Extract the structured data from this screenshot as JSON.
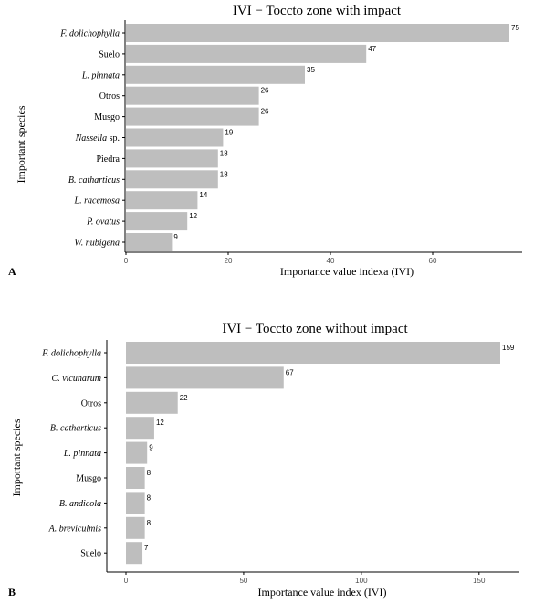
{
  "chart_data": [
    {
      "type": "bar",
      "orientation": "horizontal",
      "title": "IVI − Toccto zone with impact",
      "xlabel": "Importance value indexa (IVI)",
      "ylabel": "Important species",
      "panel_label": "A",
      "xlim": [
        0,
        75
      ],
      "xticks": [
        "0",
        "20",
        "40",
        "60"
      ],
      "grid": false,
      "categories": [
        {
          "label": "F. dolichophylla",
          "italic": true
        },
        {
          "label": "Suelo",
          "italic": false
        },
        {
          "label": "L. pinnata",
          "italic": true
        },
        {
          "label": "Otros",
          "italic": false
        },
        {
          "label": "Musgo",
          "italic": false
        },
        {
          "label": "Nassella",
          "suffix": " sp.",
          "italic": true
        },
        {
          "label": "Piedra",
          "italic": false
        },
        {
          "label": "B. catharticus",
          "italic": true
        },
        {
          "label": "L. racemosa",
          "italic": true
        },
        {
          "label": "P. ovatus",
          "italic": true
        },
        {
          "label": "W. nubigena",
          "italic": true
        }
      ],
      "values": [
        75,
        47,
        35,
        26,
        26,
        19,
        18,
        18,
        14,
        12,
        9
      ],
      "value_labels": [
        "75",
        "47",
        "35",
        "26",
        "26",
        "19",
        "18",
        "18",
        "14",
        "12",
        "9"
      ]
    },
    {
      "type": "bar",
      "orientation": "horizontal",
      "title": "IVI − Toccto zone without impact",
      "xlabel": "Importance value index (IVI)",
      "ylabel": "Important species",
      "panel_label": "B",
      "xlim": [
        0,
        159
      ],
      "xticks": [
        "0",
        "50",
        "100",
        "150"
      ],
      "grid": false,
      "categories": [
        {
          "label": "F. dolichophylla",
          "italic": true
        },
        {
          "label": "C. vicunarum",
          "italic": true
        },
        {
          "label": "Otros",
          "italic": false
        },
        {
          "label": "B. catharticus",
          "italic": true
        },
        {
          "label": "L. pinnata",
          "italic": true
        },
        {
          "label": "Musgo",
          "italic": false
        },
        {
          "label": "B. andicola",
          "italic": true
        },
        {
          "label": "A. breviculmis",
          "italic": true
        },
        {
          "label": "Suelo",
          "italic": false
        }
      ],
      "values": [
        159,
        67,
        22,
        12,
        9,
        8,
        8,
        8,
        7
      ],
      "value_labels": [
        "159",
        "67",
        "22",
        "12",
        "9",
        "8",
        "8",
        "8",
        "7"
      ]
    }
  ],
  "colors": {
    "bar": "#bebebe",
    "axis": "#000000",
    "tick_text": "#4d4d4d"
  }
}
